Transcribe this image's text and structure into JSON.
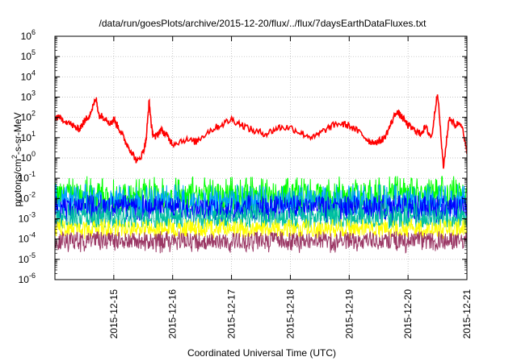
{
  "chart_data": {
    "type": "line",
    "title": "/data/run/goesPlots/archive/2015-12-20/flux/../flux/7daysEarthDataFluxes.txt",
    "xlabel": "Coordinated Universal Time (UTC)",
    "ylabel": {
      "prefix": "protons/cm",
      "sup": "2",
      "suffix": "-s-sr-MeV"
    },
    "yscale": "log",
    "ylim_exp": [
      -6,
      6
    ],
    "y_tick_labels": [
      {
        "base": "10",
        "exp": "6",
        "e": 6
      },
      {
        "base": "10",
        "exp": "5",
        "e": 5
      },
      {
        "base": "10",
        "exp": "4",
        "e": 4
      },
      {
        "base": "10",
        "exp": "3",
        "e": 3
      },
      {
        "base": "10",
        "exp": "2",
        "e": 2
      },
      {
        "base": "10",
        "exp": "1",
        "e": 1
      },
      {
        "base": "10",
        "exp": "0",
        "e": 0
      },
      {
        "base": "10",
        "exp": "-1",
        "e": -1
      },
      {
        "base": "10",
        "exp": "-2",
        "e": -2
      },
      {
        "base": "10",
        "exp": "-3",
        "e": -3
      },
      {
        "base": "10",
        "exp": "-4",
        "e": -4
      },
      {
        "base": "10",
        "exp": "-5",
        "e": -5
      },
      {
        "base": "10",
        "exp": "-6",
        "e": -6
      }
    ],
    "x_range": [
      "2015-12-14",
      "2015-12-21"
    ],
    "x_tick_labels": [
      "2015-12-15",
      "2015-12-16",
      "2015-12-17",
      "2015-12-18",
      "2015-12-19",
      "2015-12-20",
      "2015-12-21"
    ],
    "grid": true,
    "legend": "none",
    "series": [
      {
        "color": "#ff0000",
        "width": 1.6,
        "x_days": [
          0,
          0.15,
          0.3,
          0.4,
          0.5,
          0.6,
          0.7,
          0.75,
          0.85,
          0.95,
          1.0,
          1.1,
          1.2,
          1.3,
          1.4,
          1.5,
          1.55,
          1.6,
          1.65,
          1.7,
          1.8,
          1.9,
          2.0,
          2.2,
          2.4,
          2.6,
          2.8,
          3.0,
          3.2,
          3.4,
          3.6,
          3.8,
          4.0,
          4.2,
          4.4,
          4.6,
          4.8,
          5.0,
          5.2,
          5.35,
          5.5,
          5.6,
          5.7,
          5.8,
          5.9,
          6.0,
          6.1,
          6.2,
          6.3,
          6.4,
          6.5,
          6.6,
          6.7,
          6.8,
          6.9,
          7.0
        ],
        "log10_values": [
          2.0,
          1.9,
          1.6,
          1.4,
          1.8,
          2.2,
          2.9,
          2.1,
          2.0,
          1.7,
          1.9,
          1.4,
          0.8,
          0.3,
          -0.2,
          0.3,
          0.9,
          2.8,
          1.3,
          1.0,
          1.4,
          1.1,
          0.7,
          0.9,
          0.8,
          1.3,
          1.6,
          1.9,
          1.6,
          1.3,
          1.2,
          1.5,
          1.5,
          1.2,
          1.0,
          1.4,
          1.7,
          1.6,
          1.2,
          0.8,
          0.8,
          1.0,
          1.6,
          2.3,
          2.0,
          1.6,
          1.4,
          1.2,
          1.5,
          1.0,
          3.3,
          -0.5,
          2.0,
          1.6,
          1.8,
          0.2
        ]
      },
      {
        "color": "#00ff00",
        "width": 1,
        "log10_mean": -1.9,
        "log10_range": [
          -2.7,
          -0.9
        ]
      },
      {
        "color": "#00a0ff",
        "width": 1,
        "log10_mean": -2.2,
        "log10_range": [
          -3.0,
          -1.3
        ]
      },
      {
        "color": "#0000ff",
        "width": 1,
        "log10_mean": -2.5,
        "log10_range": [
          -3.2,
          -1.8
        ]
      },
      {
        "color": "#00c0a0",
        "width": 1,
        "log10_mean": -2.95,
        "log10_range": [
          -3.5,
          -2.2
        ]
      },
      {
        "color": "#ffff00",
        "width": 1,
        "log10_mean": -3.5,
        "log10_range": [
          -4.0,
          -3.0
        ]
      },
      {
        "color": "#9b3865",
        "width": 1,
        "log10_mean": -4.1,
        "log10_range": [
          -4.7,
          -3.6
        ]
      }
    ]
  }
}
